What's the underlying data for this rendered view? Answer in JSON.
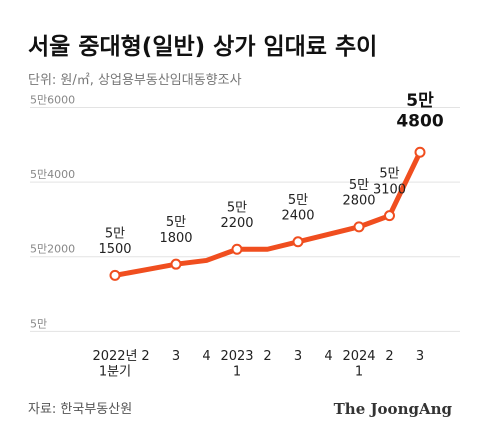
{
  "chart_data": {
    "type": "line",
    "title": "서울 중대형(일반) 상가 임대료 추이",
    "subtitle": "단위: 원/㎡, 상업용부동산임대동향조사",
    "source": "자료: 한국부동산원",
    "credit": "The JoongAng",
    "categories": [
      "2022년\n1분기",
      "2",
      "3",
      "4",
      "2023\n1",
      "2",
      "3",
      "4",
      "2024\n1",
      "2",
      "3"
    ],
    "values": [
      51500,
      51650,
      51800,
      51900,
      52200,
      52200,
      52400,
      52600,
      52800,
      53100,
      54800
    ],
    "value_labels": [
      "5만\n1500",
      null,
      "5만\n1800",
      null,
      "5만\n2200",
      null,
      "5만\n2400",
      null,
      "5만\n2800",
      "5만\n3100",
      "5만\n4800"
    ],
    "color": "#f04e1f",
    "ylim": [
      49500,
      56200
    ],
    "yticks": [
      {
        "value": 50000,
        "label": "5만"
      },
      {
        "value": 52000,
        "label": "5만2000"
      },
      {
        "value": 54000,
        "label": "5만4000"
      },
      {
        "value": 56000,
        "label": "5만6000"
      }
    ],
    "grid": true
  }
}
